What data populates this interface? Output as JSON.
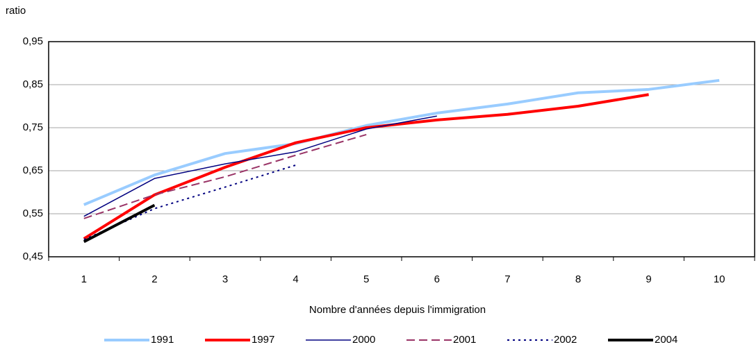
{
  "chart_data": {
    "type": "line",
    "y_label": "ratio",
    "x_label": "Nombre d'années depuis l'immigration",
    "categories": [
      "1",
      "2",
      "3",
      "4",
      "5",
      "6",
      "7",
      "8",
      "9",
      "10"
    ],
    "series": [
      {
        "name": "1991",
        "color": "#99ccff",
        "width": 4,
        "style": "solid",
        "values": [
          0.571,
          0.64,
          0.69,
          0.713,
          0.755,
          0.784,
          0.805,
          0.831,
          0.839,
          0.86
        ]
      },
      {
        "name": "1997",
        "color": "#ff0000",
        "width": 4,
        "style": "solid",
        "values": [
          0.492,
          0.594,
          0.658,
          0.715,
          0.75,
          0.768,
          0.781,
          0.8,
          0.827,
          null
        ]
      },
      {
        "name": "2000",
        "color": "#000080",
        "width": 1.5,
        "style": "solid",
        "values": [
          0.544,
          0.632,
          0.666,
          0.694,
          0.747,
          0.777,
          null,
          null,
          null,
          null
        ]
      },
      {
        "name": "2001",
        "color": "#993366",
        "width": 2,
        "style": "dashed",
        "values": [
          0.539,
          0.594,
          0.636,
          0.686,
          0.734,
          null,
          null,
          null,
          null,
          null
        ]
      },
      {
        "name": "2002",
        "color": "#000080",
        "width": 2,
        "style": "dotted",
        "values": [
          0.49,
          0.562,
          0.612,
          0.663,
          null,
          null,
          null,
          null,
          null,
          null
        ]
      },
      {
        "name": "2004",
        "color": "#000000",
        "width": 4,
        "style": "solid",
        "values": [
          0.485,
          0.57,
          null,
          null,
          null,
          null,
          null,
          null,
          null,
          null
        ]
      }
    ],
    "ylim": [
      0.45,
      0.95
    ],
    "yticks": [
      {
        "value": 0.45,
        "label": "0,45"
      },
      {
        "value": 0.55,
        "label": "0,55"
      },
      {
        "value": 0.65,
        "label": "0,65"
      },
      {
        "value": 0.75,
        "label": "0,75"
      },
      {
        "value": 0.85,
        "label": "0,85"
      },
      {
        "value": 0.95,
        "label": "0,95"
      }
    ],
    "grid": true
  }
}
